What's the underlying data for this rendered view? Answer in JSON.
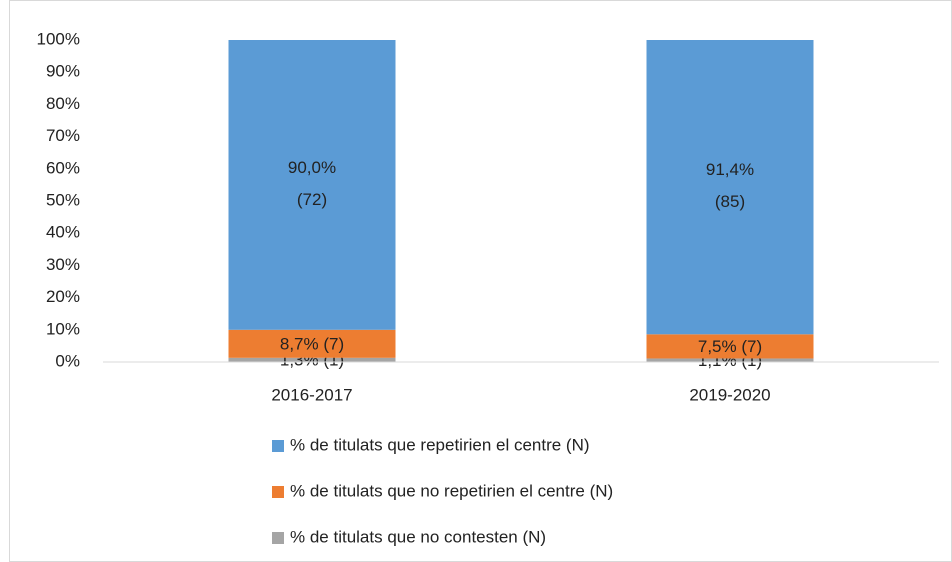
{
  "chart_data": {
    "type": "stacked_bar",
    "categories": [
      "2016-2017",
      "2019-2020"
    ],
    "series": [
      {
        "name": "% de titulats que no contesten (N)",
        "color": "#a5a5a5",
        "values": [
          1.3,
          1.1
        ],
        "value_labels": [
          "1,3% (1)",
          "1,1% (1)"
        ]
      },
      {
        "name": "% de titulats que no repetirien el centre (N)",
        "color": "#ed7d31",
        "values": [
          8.7,
          7.5
        ],
        "value_labels": [
          "8,7% (7)",
          "7,5% (7)"
        ]
      },
      {
        "name": "% de titulats que repetirien el centre (N)",
        "color": "#5b9bd5",
        "values": [
          90.0,
          91.4
        ],
        "value_labels": [
          "90,0% (72)",
          "91,4% (85)"
        ]
      }
    ],
    "ylim": [
      0,
      100
    ],
    "yticks": [
      {
        "value": 0,
        "label": "0%"
      },
      {
        "value": 10,
        "label": "10%"
      },
      {
        "value": 20,
        "label": "20%"
      },
      {
        "value": 30,
        "label": "30%"
      },
      {
        "value": 40,
        "label": "40%"
      },
      {
        "value": 50,
        "label": "50%"
      },
      {
        "value": 60,
        "label": "60%"
      },
      {
        "value": 70,
        "label": "70%"
      },
      {
        "value": 80,
        "label": "80%"
      },
      {
        "value": 90,
        "label": "90%"
      },
      {
        "value": 100,
        "label": "100%"
      }
    ],
    "grid": false,
    "legend": "bottom"
  }
}
